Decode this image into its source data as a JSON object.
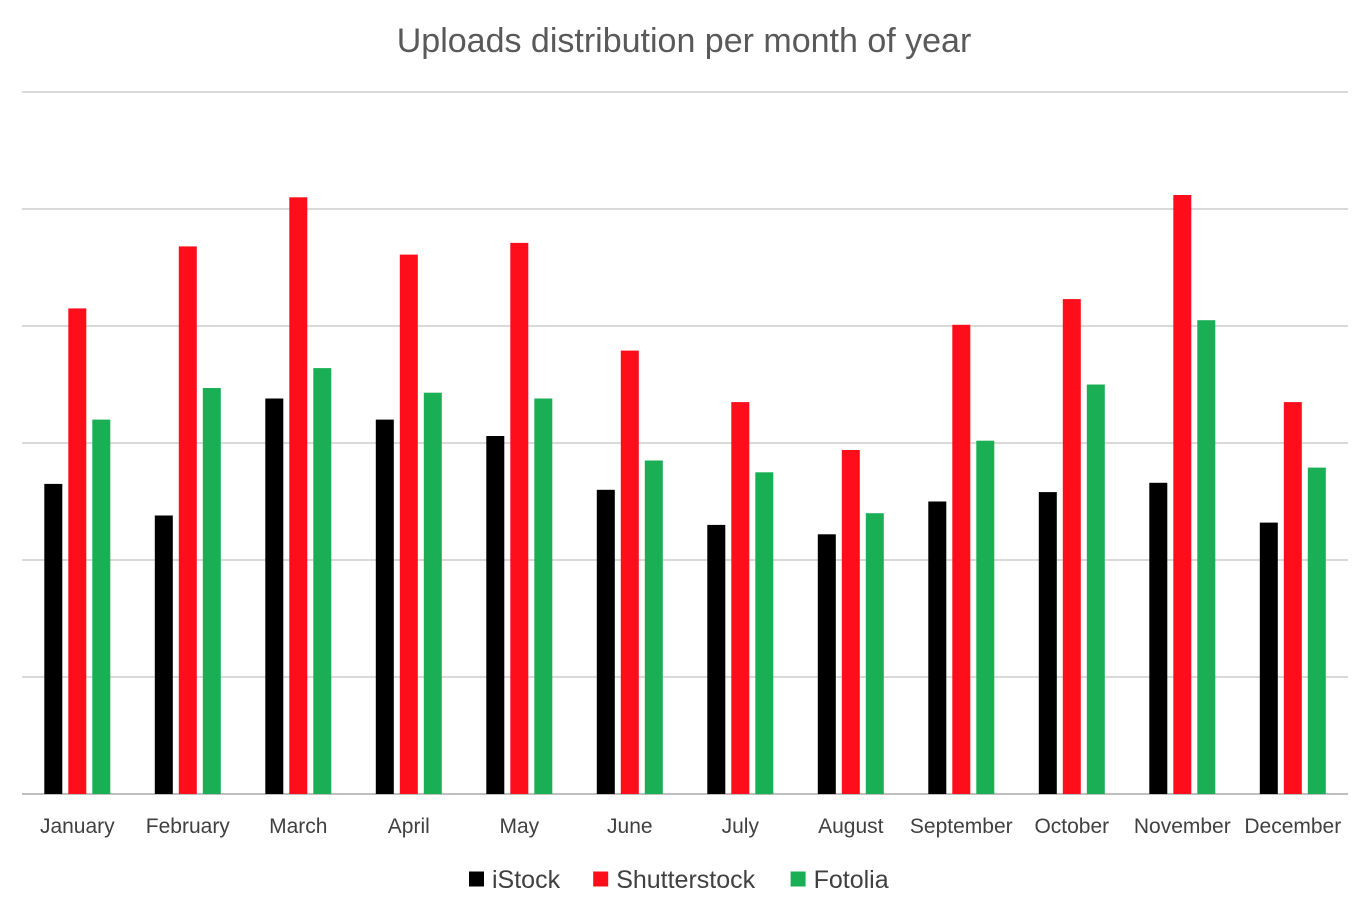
{
  "chart_data": {
    "type": "bar",
    "title": "Uploads distribution per month of year",
    "categories": [
      "January",
      "February",
      "March",
      "April",
      "May",
      "June",
      "July",
      "August",
      "September",
      "October",
      "November",
      "December"
    ],
    "series": [
      {
        "name": "iStock",
        "color": "#000000",
        "values": [
          2.65,
          2.38,
          3.38,
          3.2,
          3.06,
          2.6,
          2.3,
          2.22,
          2.5,
          2.58,
          2.66,
          2.32
        ]
      },
      {
        "name": "Shutterstock",
        "color": "#fe0d1b",
        "values": [
          4.15,
          4.68,
          5.1,
          4.61,
          4.71,
          3.79,
          3.35,
          2.94,
          4.01,
          4.23,
          5.12,
          3.35
        ]
      },
      {
        "name": "Fotolia",
        "color": "#1aaf54",
        "values": [
          3.2,
          3.47,
          3.64,
          3.43,
          3.38,
          2.85,
          2.75,
          2.4,
          3.02,
          3.5,
          4.05,
          2.79
        ]
      }
    ],
    "ylim": [
      0,
      6
    ],
    "y_tick_step": 1,
    "grid": true,
    "y_tick_labels_visible": false,
    "legend_position": "bottom-center"
  }
}
